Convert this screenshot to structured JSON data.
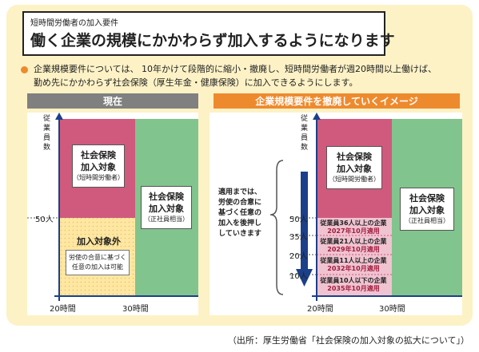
{
  "title": {
    "subtitle": "短時間労働者の加入要件",
    "main": "働く企業の規模にかかわらず加入するようになります"
  },
  "description": {
    "line1": "企業規模要件については、 10年かけて段階的に縮小・撤廃し、短時間労働者が週20時間以上働けば、",
    "line2": "勤め先にかかわらず社会保険（厚生年金・健康保険）に加入できるようにします。"
  },
  "colors": {
    "pink": "#d05a7e",
    "green": "#82c48d",
    "yellow": "#fde7a2",
    "light_pink": "#f0c3d1",
    "orange": "#ee8a2e",
    "gray": "#808080",
    "navy": "#1c3f8a"
  },
  "current": {
    "header": "現在",
    "y_axis_label": "従業員数",
    "y_tick": "50人",
    "x_ticks": [
      "20時間",
      "30時間"
    ],
    "insured_short": {
      "line1": "社会保険",
      "line2": "加入対象",
      "sub": "（短時間労働者）"
    },
    "insured_regular": {
      "line1": "社会保険",
      "line2": "加入対象",
      "sub": "（正社員相当）"
    },
    "excluded": {
      "label": "加入対象外",
      "note1": "労使の合意に基づく",
      "note2": "任意の加入は可能"
    }
  },
  "future": {
    "header": "企業規模要件を撤廃していくイメージ",
    "y_axis_label": "従業員数",
    "y_ticks": [
      "50人",
      "35人",
      "20人",
      "10人"
    ],
    "x_ticks": [
      "20時間",
      "30時間"
    ],
    "insured_short": {
      "line1": "社会保険",
      "line2": "加入対象",
      "sub": "（短時間労働者）"
    },
    "insured_regular": {
      "line1": "社会保険",
      "line2": "加入対象",
      "sub": "（正社員相当）"
    },
    "note": {
      "line1": "適用までは、",
      "line2": "労使の合意に",
      "line3": "基づく任意の",
      "line4": "加入を後押し",
      "line5": "していきます"
    },
    "steps": [
      {
        "line1": "従業員36人以上の企業",
        "line2": "2027年10月適用"
      },
      {
        "line1": "従業員21人以上の企業",
        "line2": "2029年10月適用"
      },
      {
        "line1": "従業員11人以上の企業",
        "line2": "2032年10月適用"
      },
      {
        "line1": "従業員10人以下の企業",
        "line2": "2035年10月適用"
      }
    ]
  },
  "source": "（出所：厚生労働省「社会保険の加入対象の拡大について」）"
}
